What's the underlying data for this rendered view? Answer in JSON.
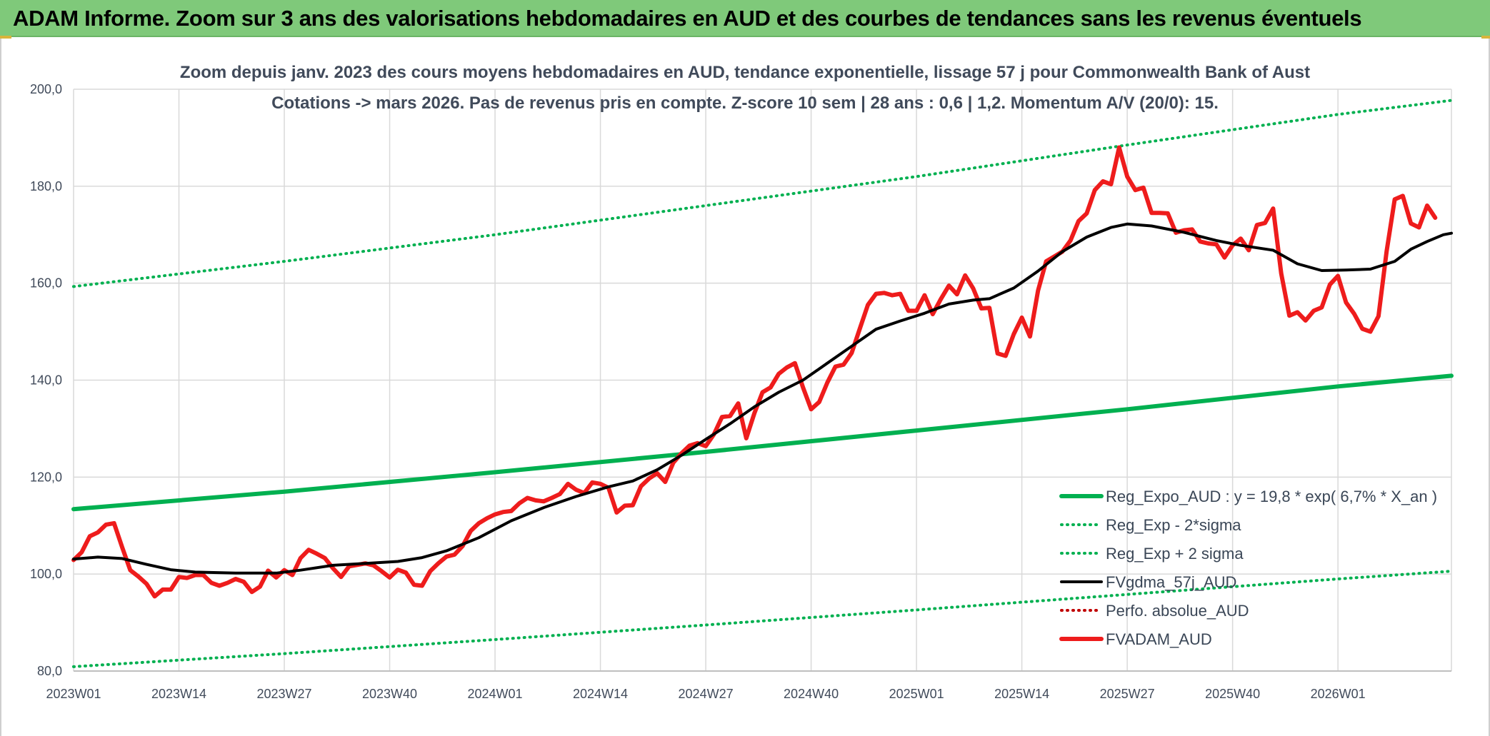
{
  "banner": {
    "title": "ADAM Informe. Zoom sur 3 ans des valorisations hebdomadaires en AUD et des courbes de tendances sans les revenus éventuels"
  },
  "colors": {
    "banner_bg": "#7fc97a",
    "regression": "#00b050",
    "fvgdma": "#000000",
    "fvadam": "#ee1c1c",
    "perfo": "#c00000"
  },
  "chart_data": {
    "type": "line",
    "title": [
      "Zoom depuis janv. 2023 des cours moyens hebdomadaires en AUD, tendance exponentielle, lissage 57 j pour Commonwealth Bank of Aust",
      "Cotations -> mars 2026. Pas de revenus pris en compte. Z-score 10 sem | 28 ans : 0,6 | 1,2. Momentum A/V (20/0): 15."
    ],
    "xlabel": "",
    "ylabel": "",
    "ylim": [
      80,
      200
    ],
    "grid": true,
    "legend_position": "bottom-right",
    "y_ticks": [
      "80,0",
      "100,0",
      "120,0",
      "140,0",
      "160,0",
      "180,0",
      "200,0"
    ],
    "y_tick_values": [
      80,
      100,
      120,
      140,
      160,
      180,
      200
    ],
    "x_ticks": [
      "2023W01",
      "2023W14",
      "2023W27",
      "2023W40",
      "2024W01",
      "2024W14",
      "2024W27",
      "2024W40",
      "2025W01",
      "2025W14",
      "2025W27",
      "2025W40",
      "2026W01"
    ],
    "x_tick_weeks": [
      0,
      13,
      26,
      39,
      52,
      65,
      78,
      91,
      104,
      117,
      130,
      143,
      156
    ],
    "x_last_week": 170,
    "series": [
      {
        "name": "Reg_Expo_AUD : y = 19,8 * exp( 6,7% *  X_an )",
        "style": "solid-thick",
        "color": "#00b050",
        "points": [
          [
            0,
            113.4
          ],
          [
            26,
            117.0
          ],
          [
            52,
            121.0
          ],
          [
            78,
            125.2
          ],
          [
            104,
            129.6
          ],
          [
            130,
            134.0
          ],
          [
            156,
            138.7
          ],
          [
            170,
            140.9
          ]
        ]
      },
      {
        "name": "Reg_Exp - 2*sigma",
        "style": "dotted",
        "color": "#00b050",
        "points": [
          [
            0,
            80.9
          ],
          [
            26,
            83.6
          ],
          [
            52,
            86.5
          ],
          [
            78,
            89.5
          ],
          [
            104,
            92.6
          ],
          [
            130,
            95.8
          ],
          [
            156,
            99.0
          ],
          [
            170,
            100.6
          ]
        ]
      },
      {
        "name": "Reg_Exp + 2 sigma",
        "style": "dotted",
        "color": "#00b050",
        "points": [
          [
            0,
            159.3
          ],
          [
            26,
            164.5
          ],
          [
            52,
            170.0
          ],
          [
            78,
            176.0
          ],
          [
            104,
            182.0
          ],
          [
            130,
            188.5
          ],
          [
            156,
            194.8
          ],
          [
            170,
            197.7
          ]
        ]
      },
      {
        "name": "FVgdma_57j_AUD",
        "style": "solid",
        "color": "#000000",
        "points": [
          [
            0,
            103.1
          ],
          [
            3,
            103.5
          ],
          [
            6,
            103.2
          ],
          [
            9,
            102.0
          ],
          [
            12,
            100.9
          ],
          [
            15,
            100.4
          ],
          [
            20,
            100.2
          ],
          [
            25,
            100.2
          ],
          [
            28,
            100.8
          ],
          [
            32,
            101.8
          ],
          [
            36,
            102.2
          ],
          [
            40,
            102.6
          ],
          [
            43,
            103.4
          ],
          [
            46,
            104.8
          ],
          [
            50,
            107.5
          ],
          [
            54,
            111.0
          ],
          [
            58,
            113.7
          ],
          [
            62,
            116.0
          ],
          [
            66,
            118.0
          ],
          [
            69,
            119.2
          ],
          [
            72,
            121.5
          ],
          [
            75,
            124.5
          ],
          [
            78,
            127.8
          ],
          [
            81,
            131.0
          ],
          [
            84,
            134.5
          ],
          [
            87,
            137.5
          ],
          [
            90,
            140.0
          ],
          [
            93,
            143.5
          ],
          [
            96,
            147.0
          ],
          [
            99,
            150.5
          ],
          [
            102,
            152.2
          ],
          [
            105,
            153.8
          ],
          [
            108,
            155.7
          ],
          [
            111,
            156.5
          ],
          [
            113,
            156.8
          ],
          [
            116,
            159.0
          ],
          [
            119,
            162.5
          ],
          [
            122,
            166.5
          ],
          [
            125,
            169.5
          ],
          [
            128,
            171.5
          ],
          [
            130,
            172.2
          ],
          [
            133,
            171.8
          ],
          [
            137,
            170.5
          ],
          [
            141,
            168.8
          ],
          [
            144,
            167.8
          ],
          [
            148,
            166.8
          ],
          [
            151,
            164.0
          ],
          [
            154,
            162.6
          ],
          [
            157,
            162.7
          ],
          [
            160,
            162.9
          ],
          [
            163,
            164.5
          ],
          [
            165,
            167.0
          ],
          [
            167,
            168.6
          ],
          [
            169,
            170.0
          ],
          [
            170,
            170.3
          ]
        ]
      },
      {
        "name": "Perfo. absolue_AUD",
        "style": "dotted",
        "color": "#c00000",
        "points": []
      },
      {
        "name": "FVADAM_AUD",
        "style": "solid-thick",
        "color": "#ee1c1c",
        "points": [
          [
            0,
            102.9
          ],
          [
            1,
            104.5
          ],
          [
            2,
            107.8
          ],
          [
            3,
            108.6
          ],
          [
            4,
            110.2
          ],
          [
            5,
            110.5
          ],
          [
            6,
            105.5
          ],
          [
            7,
            100.8
          ],
          [
            8,
            99.5
          ],
          [
            9,
            98.0
          ],
          [
            10,
            95.4
          ],
          [
            11,
            96.8
          ],
          [
            12,
            96.8
          ],
          [
            13,
            99.4
          ],
          [
            14,
            99.2
          ],
          [
            15,
            99.8
          ],
          [
            16,
            99.8
          ],
          [
            17,
            98.2
          ],
          [
            18,
            97.6
          ],
          [
            19,
            98.2
          ],
          [
            20,
            99.0
          ],
          [
            21,
            98.4
          ],
          [
            22,
            96.3
          ],
          [
            23,
            97.4
          ],
          [
            24,
            100.7
          ],
          [
            25,
            99.3
          ],
          [
            26,
            100.8
          ],
          [
            27,
            99.8
          ],
          [
            28,
            103.3
          ],
          [
            29,
            105.0
          ],
          [
            30,
            104.2
          ],
          [
            31,
            103.3
          ],
          [
            32,
            101.2
          ],
          [
            33,
            99.4
          ],
          [
            34,
            101.6
          ],
          [
            35,
            101.9
          ],
          [
            36,
            102.2
          ],
          [
            37,
            101.8
          ],
          [
            38,
            100.6
          ],
          [
            39,
            99.3
          ],
          [
            40,
            100.9
          ],
          [
            41,
            100.3
          ],
          [
            42,
            97.8
          ],
          [
            43,
            97.6
          ],
          [
            44,
            100.6
          ],
          [
            45,
            102.2
          ],
          [
            46,
            103.6
          ],
          [
            47,
            104.0
          ],
          [
            48,
            105.8
          ],
          [
            49,
            108.9
          ],
          [
            50,
            110.5
          ],
          [
            51,
            111.5
          ],
          [
            52,
            112.3
          ],
          [
            53,
            112.8
          ],
          [
            54,
            113.0
          ],
          [
            55,
            114.6
          ],
          [
            56,
            115.7
          ],
          [
            57,
            115.2
          ],
          [
            58,
            115.0
          ],
          [
            59,
            115.7
          ],
          [
            60,
            116.5
          ],
          [
            61,
            118.6
          ],
          [
            62,
            117.4
          ],
          [
            63,
            116.7
          ],
          [
            64,
            118.9
          ],
          [
            65,
            118.6
          ],
          [
            66,
            117.8
          ],
          [
            67,
            112.7
          ],
          [
            68,
            114.1
          ],
          [
            69,
            114.2
          ],
          [
            70,
            118.1
          ],
          [
            71,
            119.7
          ],
          [
            72,
            120.8
          ],
          [
            73,
            119.0
          ],
          [
            74,
            123.0
          ],
          [
            75,
            124.9
          ],
          [
            76,
            126.5
          ],
          [
            77,
            127.0
          ],
          [
            78,
            126.4
          ],
          [
            79,
            128.8
          ],
          [
            80,
            132.4
          ],
          [
            81,
            132.6
          ],
          [
            82,
            135.2
          ],
          [
            83,
            128.0
          ],
          [
            84,
            133.2
          ],
          [
            85,
            137.5
          ],
          [
            86,
            138.5
          ],
          [
            87,
            141.3
          ],
          [
            88,
            142.6
          ],
          [
            89,
            143.5
          ],
          [
            90,
            138.5
          ],
          [
            91,
            134.0
          ],
          [
            92,
            135.5
          ],
          [
            93,
            139.5
          ],
          [
            94,
            142.8
          ],
          [
            95,
            143.2
          ],
          [
            96,
            145.6
          ],
          [
            97,
            150.6
          ],
          [
            98,
            155.5
          ],
          [
            99,
            157.8
          ],
          [
            100,
            158.0
          ],
          [
            101,
            157.5
          ],
          [
            102,
            157.8
          ],
          [
            103,
            154.3
          ],
          [
            104,
            154.3
          ],
          [
            105,
            157.5
          ],
          [
            106,
            153.6
          ],
          [
            107,
            156.7
          ],
          [
            108,
            159.5
          ],
          [
            109,
            157.7
          ],
          [
            110,
            161.6
          ],
          [
            111,
            158.9
          ],
          [
            112,
            154.8
          ],
          [
            113,
            154.9
          ],
          [
            114,
            145.5
          ],
          [
            115,
            145.0
          ],
          [
            116,
            149.5
          ],
          [
            117,
            152.9
          ],
          [
            118,
            149.0
          ],
          [
            119,
            158.5
          ],
          [
            120,
            164.5
          ],
          [
            121,
            165.5
          ],
          [
            122,
            166.5
          ],
          [
            123,
            168.8
          ],
          [
            124,
            172.8
          ],
          [
            125,
            174.4
          ],
          [
            126,
            179.2
          ],
          [
            127,
            181.0
          ],
          [
            128,
            180.4
          ],
          [
            129,
            188.0
          ],
          [
            130,
            182.0
          ],
          [
            131,
            179.2
          ],
          [
            132,
            179.7
          ],
          [
            133,
            174.5
          ],
          [
            134,
            174.5
          ],
          [
            135,
            174.4
          ],
          [
            136,
            170.4
          ],
          [
            137,
            170.9
          ],
          [
            138,
            171.1
          ],
          [
            139,
            168.6
          ],
          [
            140,
            168.2
          ],
          [
            141,
            168.0
          ],
          [
            142,
            165.3
          ],
          [
            143,
            167.8
          ],
          [
            144,
            169.2
          ],
          [
            145,
            166.8
          ],
          [
            146,
            172.0
          ],
          [
            147,
            172.4
          ],
          [
            148,
            175.4
          ],
          [
            149,
            162.0
          ],
          [
            150,
            153.3
          ],
          [
            151,
            154.0
          ],
          [
            152,
            152.3
          ],
          [
            153,
            154.3
          ],
          [
            154,
            155.0
          ],
          [
            155,
            159.7
          ],
          [
            156,
            161.5
          ],
          [
            157,
            156.0
          ],
          [
            158,
            153.7
          ],
          [
            159,
            150.6
          ],
          [
            160,
            150.0
          ],
          [
            161,
            153.2
          ],
          [
            162,
            166.5
          ],
          [
            163,
            177.3
          ],
          [
            164,
            178.0
          ],
          [
            165,
            172.3
          ],
          [
            166,
            171.5
          ],
          [
            167,
            176.0
          ],
          [
            168,
            173.5
          ]
        ]
      }
    ]
  }
}
